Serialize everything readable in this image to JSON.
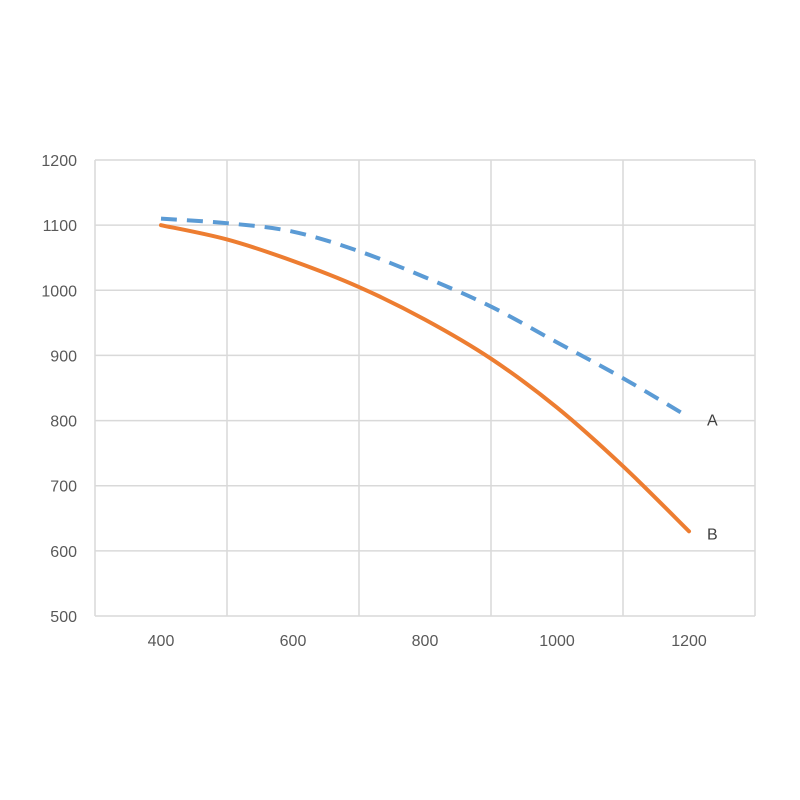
{
  "chart_data": {
    "type": "line",
    "title": "",
    "xlabel": "",
    "ylabel": "",
    "xlim": [
      300,
      1300
    ],
    "ylim": [
      500,
      1200
    ],
    "x_ticks": [
      400,
      600,
      800,
      1000,
      1200
    ],
    "y_ticks": [
      500,
      600,
      700,
      800,
      900,
      1000,
      1100,
      1200
    ],
    "x_grid": [
      300,
      500,
      700,
      900,
      1100,
      1300
    ],
    "grid": true,
    "legend": "none",
    "series": [
      {
        "name": "A",
        "style": "dashed",
        "color": "#5B9BD5",
        "x": [
          400,
          500,
          600,
          700,
          800,
          900,
          1000,
          1100,
          1200
        ],
        "y": [
          1110,
          1103,
          1090,
          1060,
          1020,
          975,
          920,
          865,
          805
        ]
      },
      {
        "name": "B",
        "style": "solid",
        "color": "#ED7D31",
        "x": [
          400,
          500,
          600,
          700,
          800,
          900,
          1000,
          1100,
          1200
        ],
        "y": [
          1100,
          1078,
          1045,
          1005,
          955,
          895,
          820,
          730,
          630
        ]
      }
    ]
  }
}
